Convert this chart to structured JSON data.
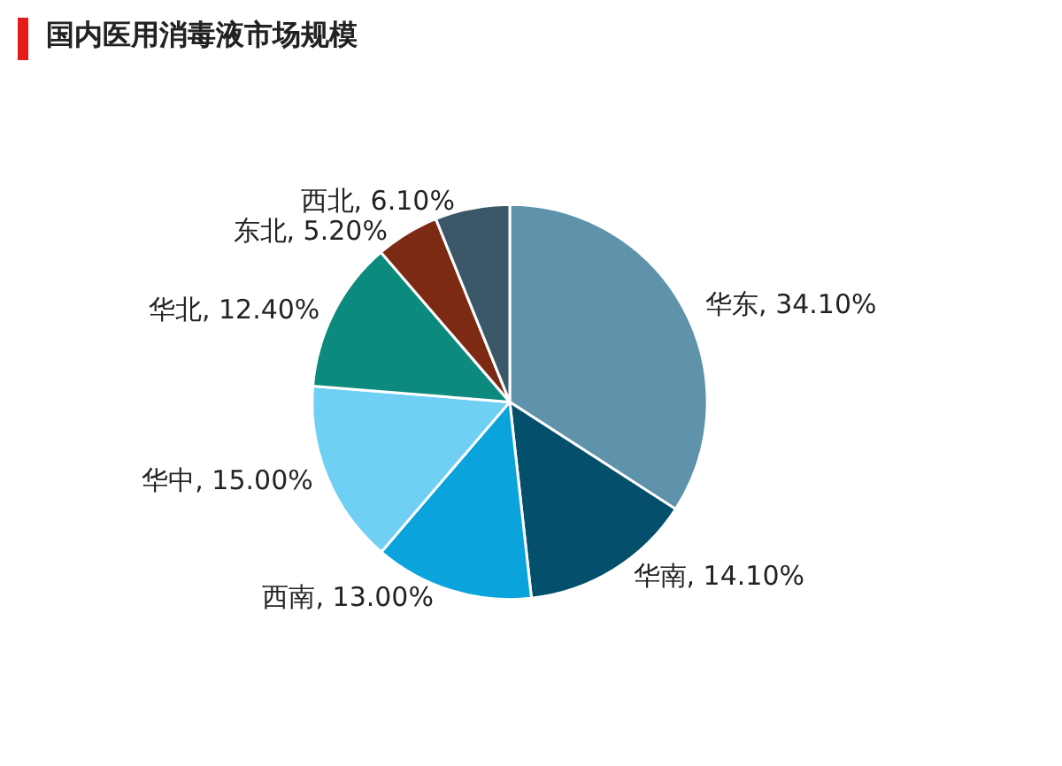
{
  "chart_data": {
    "type": "pie",
    "title": "国内医用消毒液市场规模",
    "categories": [
      "华东",
      "华南",
      "西南",
      "华中",
      "华北",
      "东北",
      "西北"
    ],
    "values": [
      34.1,
      14.1,
      13.0,
      15.0,
      12.4,
      5.2,
      6.1
    ],
    "value_labels": [
      "34.10%",
      "14.10%",
      "13.00%",
      "15.00%",
      "12.40%",
      "5.20%",
      "6.10%"
    ],
    "colors": [
      "#5e93ab",
      "#044f6b",
      "#0aa3db",
      "#6fd0f3",
      "#0c8a7e",
      "#7c2a14",
      "#3a5867"
    ],
    "legend": false
  }
}
